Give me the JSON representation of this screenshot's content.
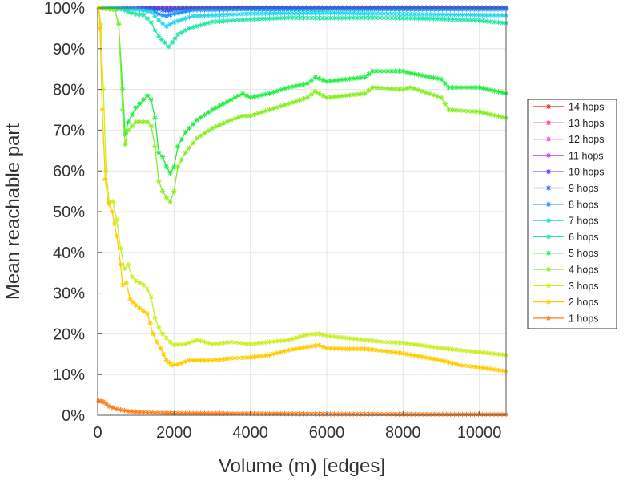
{
  "chart_data": {
    "type": "line",
    "title": "",
    "xlabel": "Volume (m) [edges]",
    "ylabel": "Mean reachable part",
    "xlim": [
      0,
      10700
    ],
    "ylim": [
      0,
      100
    ],
    "x_ticks": [
      0,
      2000,
      4000,
      6000,
      8000,
      10000
    ],
    "x_tick_labels": [
      "0",
      "2000",
      "4000",
      "6000",
      "8000",
      "10000"
    ],
    "y_ticks": [
      0,
      10,
      20,
      30,
      40,
      50,
      60,
      70,
      80,
      90,
      100
    ],
    "y_tick_labels": [
      "0%",
      "10%",
      "20%",
      "30%",
      "40%",
      "50%",
      "60%",
      "70%",
      "80%",
      "90%",
      "100%"
    ],
    "grid": true,
    "legend_position": "right",
    "series": [
      {
        "name": "14 hops",
        "color": "#ff1a1a",
        "points": [
          [
            30,
            100
          ],
          [
            10700,
            100
          ]
        ]
      },
      {
        "name": "13 hops",
        "color": "#ff3399",
        "points": [
          [
            30,
            100
          ],
          [
            10700,
            100
          ]
        ]
      },
      {
        "name": "12 hops",
        "color": "#ee44ee",
        "points": [
          [
            30,
            100
          ],
          [
            10700,
            100
          ]
        ]
      },
      {
        "name": "11 hops",
        "color": "#b040ff",
        "points": [
          [
            30,
            100
          ],
          [
            10700,
            100
          ]
        ]
      },
      {
        "name": "10 hops",
        "color": "#6a2cff",
        "points": [
          [
            30,
            100
          ],
          [
            10700,
            100
          ]
        ]
      },
      {
        "name": "9 hops",
        "color": "#2a5cff",
        "points": [
          [
            30,
            100
          ],
          [
            1500,
            99.8
          ],
          [
            1700,
            99.5
          ],
          [
            1850,
            99.3
          ],
          [
            2000,
            99.6
          ],
          [
            2500,
            99.9
          ],
          [
            10700,
            99.9
          ]
        ]
      },
      {
        "name": "8 hops",
        "color": "#1e90ff",
        "points": [
          [
            30,
            100
          ],
          [
            1400,
            99.6
          ],
          [
            1600,
            98.5
          ],
          [
            1800,
            98
          ],
          [
            2000,
            98.6
          ],
          [
            2500,
            99.5
          ],
          [
            4000,
            99.7
          ],
          [
            10700,
            99.7
          ]
        ]
      },
      {
        "name": "7 hops",
        "color": "#22d6f2",
        "points": [
          [
            30,
            100
          ],
          [
            1000,
            99.8
          ],
          [
            1400,
            99
          ],
          [
            1600,
            97
          ],
          [
            1800,
            95.5
          ],
          [
            2000,
            96.5
          ],
          [
            2500,
            98
          ],
          [
            4000,
            98.6
          ],
          [
            6000,
            98.8
          ],
          [
            8000,
            98.5
          ],
          [
            10700,
            98.2
          ]
        ]
      },
      {
        "name": "6 hops",
        "color": "#22e6a8",
        "points": [
          [
            30,
            100
          ],
          [
            300,
            100
          ],
          [
            600,
            99.8
          ],
          [
            800,
            99
          ],
          [
            1000,
            98.5
          ],
          [
            1200,
            98.3
          ],
          [
            1400,
            96.5
          ],
          [
            1500,
            94.5
          ],
          [
            1600,
            93
          ],
          [
            1750,
            91.5
          ],
          [
            1850,
            90.5
          ],
          [
            1950,
            91.5
          ],
          [
            2100,
            93.5
          ],
          [
            2400,
            95
          ],
          [
            3000,
            96.6
          ],
          [
            4000,
            97.2
          ],
          [
            5000,
            97.6
          ],
          [
            6000,
            97.5
          ],
          [
            7000,
            97.6
          ],
          [
            8000,
            97.5
          ],
          [
            9000,
            97.3
          ],
          [
            10000,
            96.9
          ],
          [
            10700,
            96.3
          ]
        ]
      },
      {
        "name": "5 hops",
        "color": "#22ee44",
        "points": [
          [
            30,
            100
          ],
          [
            450,
            99.5
          ],
          [
            550,
            96
          ],
          [
            650,
            80
          ],
          [
            720,
            69
          ],
          [
            800,
            72
          ],
          [
            1000,
            75.5
          ],
          [
            1200,
            77.5
          ],
          [
            1300,
            78.5
          ],
          [
            1400,
            77.5
          ],
          [
            1500,
            73
          ],
          [
            1600,
            64.5
          ],
          [
            1700,
            63.5
          ],
          [
            1800,
            61
          ],
          [
            1900,
            59.5
          ],
          [
            2000,
            61
          ],
          [
            2100,
            66
          ],
          [
            2300,
            69.5
          ],
          [
            2600,
            72.5
          ],
          [
            3000,
            75
          ],
          [
            3500,
            77.5
          ],
          [
            3800,
            79
          ],
          [
            4000,
            78
          ],
          [
            4500,
            79
          ],
          [
            5000,
            80.5
          ],
          [
            5500,
            81.5
          ],
          [
            5700,
            83
          ],
          [
            6000,
            82
          ],
          [
            7000,
            83
          ],
          [
            7200,
            84.5
          ],
          [
            8000,
            84.5
          ],
          [
            8200,
            84
          ],
          [
            9000,
            82.5
          ],
          [
            9200,
            80.5
          ],
          [
            10000,
            80.5
          ],
          [
            10700,
            79
          ]
        ]
      },
      {
        "name": "4 hops",
        "color": "#88ee22",
        "points": [
          [
            30,
            100
          ],
          [
            450,
            99.5
          ],
          [
            550,
            96
          ],
          [
            650,
            75
          ],
          [
            720,
            66.5
          ],
          [
            800,
            70
          ],
          [
            1000,
            72
          ],
          [
            1300,
            72
          ],
          [
            1400,
            71
          ],
          [
            1500,
            66
          ],
          [
            1600,
            57.5
          ],
          [
            1700,
            55
          ],
          [
            1800,
            53.5
          ],
          [
            1900,
            52.5
          ],
          [
            2000,
            55
          ],
          [
            2100,
            61
          ],
          [
            2300,
            64.5
          ],
          [
            2600,
            68
          ],
          [
            3000,
            70.5
          ],
          [
            3500,
            72.5
          ],
          [
            3800,
            73.5
          ],
          [
            4000,
            73.5
          ],
          [
            4500,
            75
          ],
          [
            5000,
            76.5
          ],
          [
            5500,
            78
          ],
          [
            5700,
            79.5
          ],
          [
            6000,
            78
          ],
          [
            7000,
            79
          ],
          [
            7200,
            80.5
          ],
          [
            8000,
            80
          ],
          [
            8200,
            80.5
          ],
          [
            9000,
            78
          ],
          [
            9200,
            75
          ],
          [
            10000,
            74.5
          ],
          [
            10700,
            73
          ]
        ]
      },
      {
        "name": "3 hops",
        "color": "#c8f020",
        "points": [
          [
            30,
            100
          ],
          [
            80,
            96
          ],
          [
            150,
            80
          ],
          [
            220,
            60
          ],
          [
            300,
            52.5
          ],
          [
            400,
            52.5
          ],
          [
            500,
            48
          ],
          [
            600,
            41
          ],
          [
            700,
            36
          ],
          [
            800,
            37
          ],
          [
            900,
            34
          ],
          [
            1000,
            33
          ],
          [
            1200,
            32
          ],
          [
            1300,
            31
          ],
          [
            1400,
            29
          ],
          [
            1500,
            24
          ],
          [
            1600,
            21.5
          ],
          [
            1700,
            20
          ],
          [
            1900,
            18
          ],
          [
            2000,
            17.3
          ],
          [
            2300,
            17.5
          ],
          [
            2600,
            18.5
          ],
          [
            3000,
            17.5
          ],
          [
            3500,
            18
          ],
          [
            4000,
            17.5
          ],
          [
            4500,
            18
          ],
          [
            5000,
            18.5
          ],
          [
            5500,
            19.8
          ],
          [
            5800,
            20
          ],
          [
            6000,
            19.5
          ],
          [
            6500,
            19
          ],
          [
            7000,
            18.5
          ],
          [
            7500,
            18
          ],
          [
            8000,
            17.8
          ],
          [
            9000,
            16.5
          ],
          [
            9500,
            16
          ],
          [
            10000,
            15.5
          ],
          [
            10700,
            14.8
          ]
        ]
      },
      {
        "name": "2 hops",
        "color": "#ffcc00",
        "points": [
          [
            30,
            100
          ],
          [
            60,
            95
          ],
          [
            120,
            75
          ],
          [
            200,
            58
          ],
          [
            280,
            52
          ],
          [
            380,
            50
          ],
          [
            500,
            44
          ],
          [
            600,
            37
          ],
          [
            650,
            32
          ],
          [
            750,
            32.5
          ],
          [
            850,
            28.5
          ],
          [
            1000,
            27
          ],
          [
            1200,
            25.5
          ],
          [
            1300,
            25
          ],
          [
            1450,
            20
          ],
          [
            1550,
            18
          ],
          [
            1650,
            16.5
          ],
          [
            1800,
            13.5
          ],
          [
            1950,
            12.3
          ],
          [
            2100,
            12.5
          ],
          [
            2400,
            13.5
          ],
          [
            3000,
            13.5
          ],
          [
            3500,
            14
          ],
          [
            4000,
            14.2
          ],
          [
            4500,
            14.8
          ],
          [
            5000,
            16
          ],
          [
            5500,
            16.8
          ],
          [
            5800,
            17.2
          ],
          [
            6000,
            16.5
          ],
          [
            6500,
            16.3
          ],
          [
            7000,
            16.3
          ],
          [
            7500,
            15.8
          ],
          [
            8000,
            15.2
          ],
          [
            9000,
            13.5
          ],
          [
            9500,
            12.3
          ],
          [
            10000,
            11.8
          ],
          [
            10700,
            10.8
          ]
        ]
      },
      {
        "name": "1 hops",
        "color": "#ff7b14",
        "points": [
          [
            30,
            3.5
          ],
          [
            150,
            3.3
          ],
          [
            300,
            2.2
          ],
          [
            500,
            1.5
          ],
          [
            800,
            1
          ],
          [
            1200,
            0.7
          ],
          [
            2000,
            0.5
          ],
          [
            4000,
            0.4
          ],
          [
            6000,
            0.3
          ],
          [
            8000,
            0.25
          ],
          [
            10700,
            0.2
          ]
        ]
      }
    ]
  }
}
